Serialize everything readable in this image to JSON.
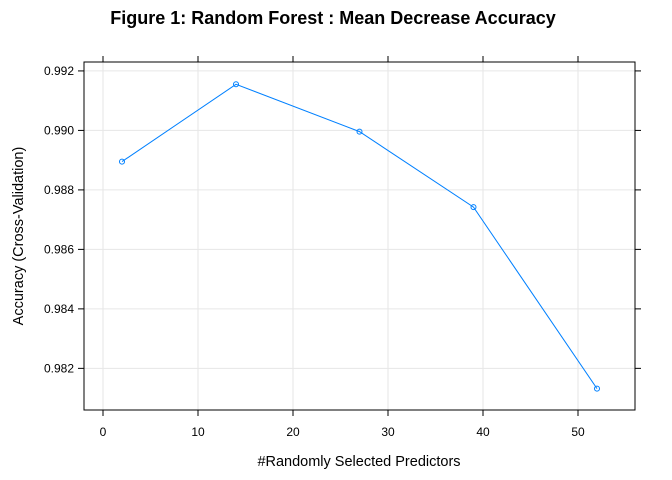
{
  "chart_data": {
    "type": "line",
    "title": "Figure 1: Random Forest : Mean Decrease Accuracy",
    "xlabel": "#Randomly Selected Predictors",
    "ylabel": "Accuracy (Cross-Validation)",
    "x": [
      2,
      14,
      27,
      39,
      52
    ],
    "series": [
      {
        "values": [
          0.98895,
          0.99155,
          0.98996,
          0.98742,
          0.98132
        ]
      }
    ],
    "xlim": [
      -2,
      56
    ],
    "ylim": [
      0.9806,
      0.9923
    ],
    "xticks": [
      0,
      10,
      20,
      30,
      40,
      50
    ],
    "yticks": [
      0.982,
      0.984,
      0.986,
      0.988,
      0.99,
      0.992
    ],
    "xtick_labels": [
      "0",
      "10",
      "20",
      "30",
      "40",
      "50"
    ],
    "ytick_labels": [
      "0.982",
      "0.984",
      "0.986",
      "0.988",
      "0.990",
      "0.992"
    ],
    "grid": true,
    "legend": "none",
    "colors": {
      "series": "#0080ff",
      "grid": "#e6e6e6",
      "frame": "#000000",
      "background": "#ffffff"
    }
  }
}
